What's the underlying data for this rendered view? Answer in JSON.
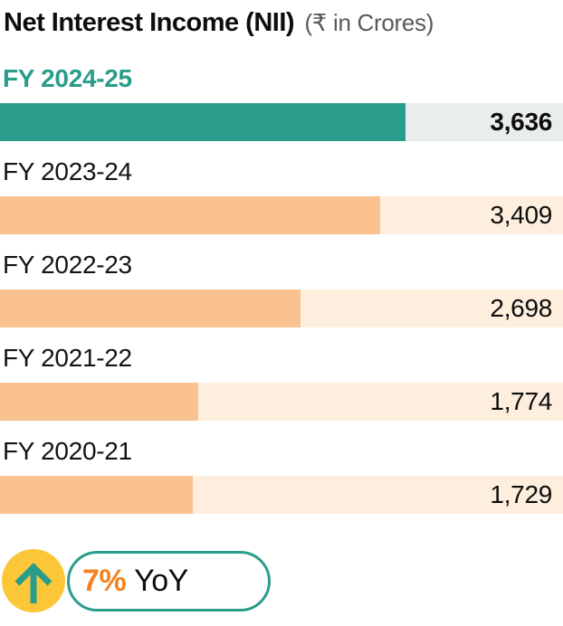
{
  "header": {
    "title": "Net Interest Income (NII)",
    "subtitle": "(₹ in Crores)"
  },
  "colors": {
    "highlight_fill": "#2a9d8a",
    "highlight_track": "#e9edeb",
    "bar_fill": "#f9c28e",
    "bar_track": "#fdeedd",
    "accent_orange": "#f58220",
    "badge_circle_yellow": "#fbc739",
    "subtitle_gray": "#595959"
  },
  "chart_data": {
    "type": "bar",
    "orientation": "horizontal",
    "title": "Net Interest Income (NII)",
    "unit": "₹ in Crores",
    "categories": [
      "FY 2024-25",
      "FY 2023-24",
      "FY 2022-23",
      "FY 2021-22",
      "FY 2020-21"
    ],
    "values": [
      3636,
      3409,
      2698,
      1774,
      1729
    ],
    "value_labels": [
      "3,636",
      "3,409",
      "2,698",
      "1,774",
      "1,729"
    ],
    "highlight_index": 0,
    "xmax": 5050,
    "grid": false,
    "legend": false
  },
  "badge": {
    "icon": "arrow-up-icon",
    "percent": "7%",
    "suffix": "YoY"
  }
}
